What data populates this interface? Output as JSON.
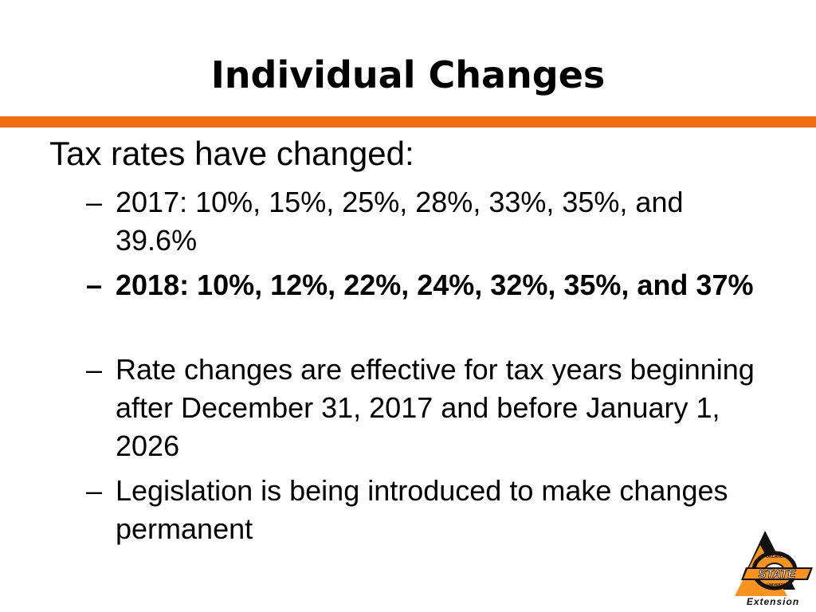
{
  "slide": {
    "title": "Individual Changes",
    "heading": "Tax rates have changed:",
    "bullets": [
      {
        "dash": "–",
        "text": "2017: 10%, 15%, 25%, 28%, 33%, 35%, and 39.6%"
      },
      {
        "dash": "–",
        "text": "2018: 10%, 12%, 22%, 24%, 32%, 35%, and 37%"
      },
      {
        "dash": "–",
        "text": "Rate changes are effective for tax years beginning after December 31, 2017 and before January 1, 2026"
      },
      {
        "dash": "–",
        "text": "Legislation is being introduced to make changes permanent"
      }
    ]
  },
  "logo": {
    "top_arc_text": "OKLAHOMA",
    "main_text": "STATE",
    "sub_text": "UNIVERSITY",
    "footer_text": "Extension"
  },
  "colors": {
    "accent_orange": "#f26c11",
    "logo_orange": "#f7931e",
    "text": "#000000",
    "background": "#ffffff"
  }
}
